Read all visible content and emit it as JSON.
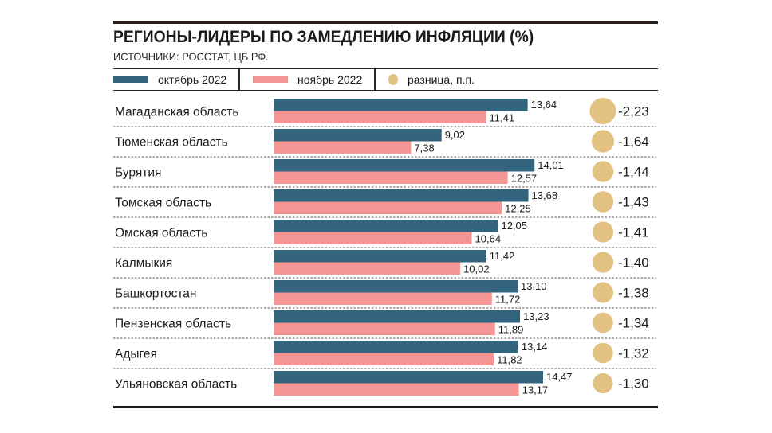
{
  "header": {
    "title": "РЕГИОНЫ-ЛИДЕРЫ ПО ЗАМЕДЛЕНИЮ ИНФЛЯЦИИ (%)",
    "subtitle": "ИСТОЧНИКИ: РОССТАТ, ЦБ РФ."
  },
  "legend": {
    "items": [
      {
        "label": "октябрь 2022",
        "color": "#33657f",
        "shape": "bar"
      },
      {
        "label": "ноябрь 2022",
        "color": "#f49493",
        "shape": "bar"
      },
      {
        "label": "разница, п.п.",
        "color": "#e2c183",
        "shape": "circle"
      }
    ]
  },
  "chart_data": {
    "type": "bar",
    "orientation": "horizontal",
    "title": "РЕГИОНЫ-ЛИДЕРЫ ПО ЗАМЕДЛЕНИЮ ИНФЛЯЦИИ (%)",
    "subtitle": "ИСТОЧНИКИ: РОССТАТ, ЦБ РФ.",
    "xlabel": "",
    "ylabel": "",
    "grid": false,
    "legend_position": "top",
    "categories": [
      "Магаданская область",
      "Тюменская область",
      "Бурятия",
      "Томская область",
      "Омская область",
      "Калмыкия",
      "Башкортостан",
      "Пензенская область",
      "Адыгея",
      "Ульяновская область"
    ],
    "series": [
      {
        "name": "октябрь 2022",
        "color": "#33657f",
        "values": [
          13.64,
          9.02,
          14.01,
          13.68,
          12.05,
          11.42,
          13.1,
          13.23,
          13.14,
          14.47
        ],
        "labels": [
          "13,64",
          "9,02",
          "14,01",
          "13,68",
          "12,05",
          "11,42",
          "13,10",
          "13,23",
          "13,14",
          "14,47"
        ]
      },
      {
        "name": "ноябрь 2022",
        "color": "#f49493",
        "values": [
          11.41,
          7.38,
          12.57,
          12.25,
          10.64,
          10.02,
          11.72,
          11.89,
          11.82,
          13.17
        ],
        "labels": [
          "11,41",
          "7,38",
          "12,57",
          "12,25",
          "10,64",
          "10,02",
          "11,72",
          "11,89",
          "11,82",
          "13,17"
        ]
      },
      {
        "name": "разница, п.п.",
        "color": "#e2c183",
        "type": "bubble",
        "values": [
          -2.23,
          -1.64,
          -1.44,
          -1.43,
          -1.41,
          -1.4,
          -1.38,
          -1.34,
          -1.32,
          -1.3
        ],
        "labels": [
          "-2,23",
          "-1,64",
          "-1,44",
          "-1,43",
          "-1,41",
          "-1,40",
          "-1,38",
          "-1,34",
          "-1,32",
          "-1,30"
        ]
      }
    ],
    "xlim": [
      0,
      14.47
    ]
  }
}
